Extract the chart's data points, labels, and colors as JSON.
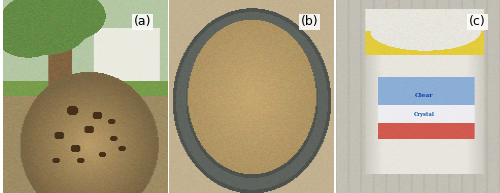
{
  "figure_width": 5.0,
  "figure_height": 1.93,
  "dpi": 100,
  "background_color": "#ffffff",
  "label_fontsize": 9,
  "panel_a": {
    "label": "(a)",
    "bg_sky": [
      180,
      200,
      170
    ],
    "bg_grass": [
      120,
      160,
      80
    ],
    "bg_ground": [
      160,
      140,
      100
    ],
    "tree_bark": [
      140,
      110,
      70
    ],
    "mound_base": [
      185,
      155,
      100
    ],
    "mound_dark": [
      130,
      100,
      60
    ],
    "hole_color": [
      80,
      55,
      30
    ]
  },
  "panel_b": {
    "label": "(b)",
    "bg_color": [
      195,
      178,
      145
    ],
    "bowl_outer": [
      80,
      85,
      80
    ],
    "bowl_rim": [
      100,
      105,
      100
    ],
    "sawdust": [
      195,
      165,
      110
    ],
    "sawdust_light": [
      210,
      180,
      130
    ]
  },
  "panel_c": {
    "label": "(c)",
    "bg_color": [
      200,
      195,
      185
    ],
    "container_body": [
      235,
      232,
      225
    ],
    "lid_yellow": [
      230,
      210,
      80
    ],
    "lid_white": [
      240,
      238,
      230
    ],
    "rice_husk": [
      235,
      233,
      225
    ],
    "label_blue": [
      140,
      175,
      215
    ],
    "label_red": [
      200,
      80,
      70
    ],
    "label_white": [
      240,
      240,
      245
    ]
  }
}
